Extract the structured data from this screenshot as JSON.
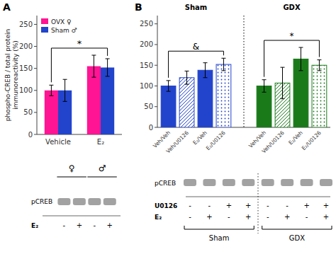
{
  "chart_data": [
    {
      "type": "bar",
      "categories": [
        "Vehicle",
        "E₂"
      ],
      "series": [
        {
          "name": "OVX ♀",
          "color": "#FF1493",
          "values": [
            100,
            155
          ],
          "errors": [
            12,
            25
          ]
        },
        {
          "name": "Sham ♂",
          "color": "#2244CC",
          "values": [
            100,
            152
          ],
          "errors": [
            25,
            20
          ]
        }
      ],
      "y_label": "phospho-CREB / total protein\nimmunoreactivity (%)",
      "ylim": [
        0,
        270
      ],
      "yticks": [
        0,
        50,
        100,
        150,
        200,
        250
      ],
      "legend": "upper left",
      "annotations": {
        "panel": "A",
        "brackets": [
          "*"
        ],
        "blot": {
          "band": "pCREB",
          "groups": [
            "♀",
            "♂"
          ],
          "rows": [
            {
              "name": "E₂",
              "values": [
                "-",
                "+",
                "-",
                "+"
              ]
            }
          ]
        }
      }
    },
    {
      "type": "bar",
      "categories": [
        "Veh/Veh",
        "Veh/U0126",
        "E₂/Veh",
        "E₂/U0126",
        "Veh/Veh",
        "Veh/U0126",
        "E₂/Veh",
        "E₂/U0126"
      ],
      "values": [
        100,
        120,
        138,
        152,
        100,
        107,
        165,
        150
      ],
      "errors": [
        13,
        16,
        18,
        15,
        15,
        38,
        28,
        13
      ],
      "colors": [
        "#2244CC",
        "#2244CC",
        "#2244CC",
        "#2244CC",
        "#1A7A1A",
        "#1A7A1A",
        "#1A7A1A",
        "#1A7A1A"
      ],
      "ylim": [
        0,
        270
      ],
      "yticks": [
        0,
        50,
        100,
        150,
        200,
        250
      ],
      "annotations": {
        "panel": "B",
        "groups": [
          "Sham",
          "GDX"
        ],
        "brackets": [
          "&",
          "*"
        ],
        "blot": {
          "band": "pCREB",
          "groups": [
            "Sham",
            "GDX"
          ],
          "rows": [
            {
              "name": "U0126",
              "values": [
                "-",
                "-",
                "+",
                "+",
                "-",
                "-",
                "+",
                "+"
              ]
            },
            {
              "name": "E₂",
              "values": [
                "-",
                "+",
                "-",
                "+",
                "-",
                "+",
                "-",
                "+"
              ]
            }
          ]
        }
      }
    }
  ]
}
